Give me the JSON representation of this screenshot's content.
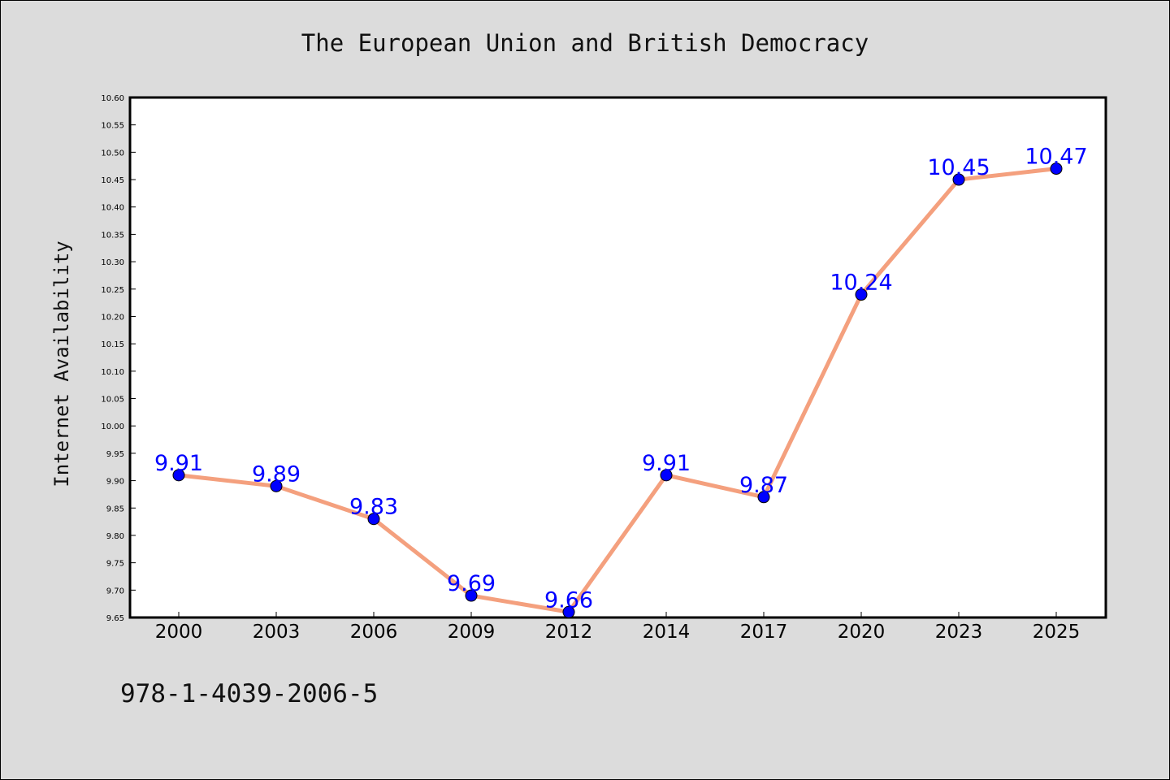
{
  "chart_data": {
    "type": "line",
    "title": "The European Union and British Democracy",
    "xlabel": "",
    "ylabel": "Internet Availability",
    "categories": [
      "2000",
      "2003",
      "2006",
      "2009",
      "2012",
      "2014",
      "2017",
      "2020",
      "2023",
      "2025"
    ],
    "series": [
      {
        "values": [
          9.91,
          9.89,
          9.83,
          9.69,
          9.66,
          9.91,
          9.87,
          10.24,
          10.45,
          10.47
        ]
      }
    ],
    "data_labels": [
      "9.91",
      "9.89",
      "9.83",
      "9.69",
      "9.66",
      "9.91",
      "9.87",
      "10.24",
      "10.45",
      "10.47"
    ],
    "ylim": [
      9.65,
      10.6
    ],
    "yticks": [
      "9.65",
      "9.70",
      "9.75",
      "9.80",
      "9.85",
      "9.90",
      "9.95",
      "10.00",
      "10.05",
      "10.10",
      "10.15",
      "10.20",
      "10.25",
      "10.30",
      "10.35",
      "10.40",
      "10.45",
      "10.50",
      "10.55",
      "10.60"
    ],
    "grid": false,
    "legend": "none",
    "colors": {
      "line": "#f4a07e",
      "marker": "#0000ff",
      "label": "#0000ff",
      "background": "#dcdcdc",
      "plot_background": "#ffffff"
    }
  },
  "footer": {
    "isbn": "978-1-4039-2006-5"
  }
}
